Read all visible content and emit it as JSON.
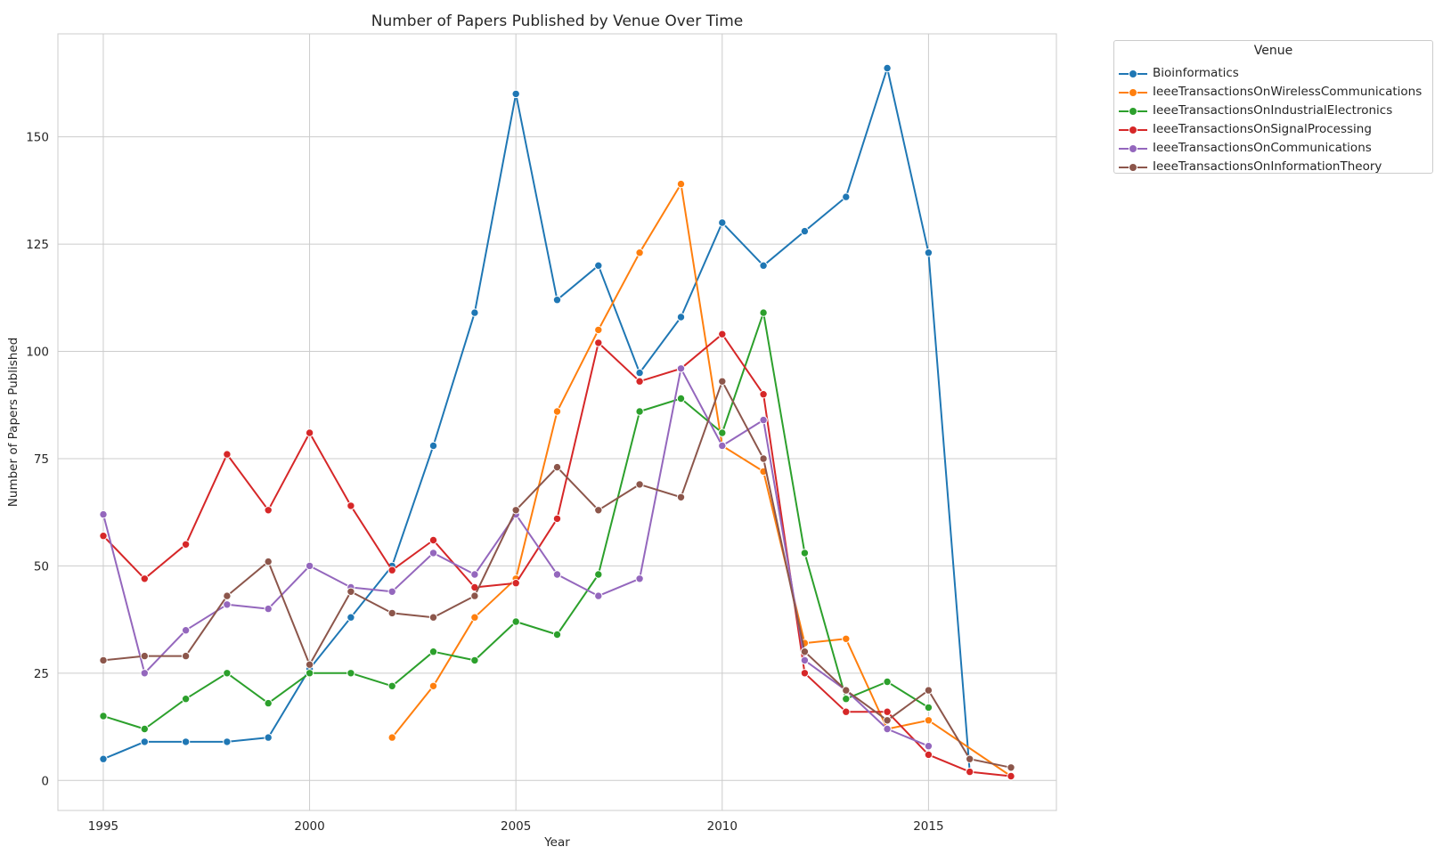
{
  "chart_data": {
    "type": "line",
    "title": "Number of Papers Published by Venue Over Time",
    "xlabel": "Year",
    "ylabel": "Number of Papers Published",
    "xlim": [
      1993.9,
      2018.1
    ],
    "ylim": [
      -7,
      174
    ],
    "xticks": [
      1995,
      2000,
      2005,
      2010,
      2015
    ],
    "yticks": [
      0,
      25,
      50,
      75,
      100,
      125,
      150
    ],
    "grid": true,
    "legend_title": "Venue",
    "legend_position": "outside-top-right",
    "series": [
      {
        "name": "Bioinformatics",
        "color": "#1f77b4",
        "x": [
          1995,
          1996,
          1997,
          1998,
          1999,
          2000,
          2001,
          2002,
          2003,
          2004,
          2005,
          2006,
          2007,
          2008,
          2009,
          2010,
          2011,
          2012,
          2013,
          2014,
          2015,
          2016
        ],
        "values": [
          5,
          9,
          9,
          9,
          10,
          26,
          38,
          50,
          78,
          109,
          160,
          112,
          120,
          95,
          108,
          130,
          120,
          128,
          136,
          166,
          123,
          2
        ]
      },
      {
        "name": "IeeeTransactionsOnWirelessCommunications",
        "color": "#ff7f0e",
        "x": [
          2002,
          2003,
          2004,
          2005,
          2006,
          2007,
          2008,
          2009,
          2010,
          2011,
          2012,
          2013,
          2014,
          2015,
          2017
        ],
        "values": [
          10,
          22,
          38,
          47,
          86,
          105,
          123,
          139,
          78,
          72,
          32,
          33,
          12,
          14,
          1
        ]
      },
      {
        "name": "IeeeTransactionsOnIndustrialElectronics",
        "color": "#2ca02c",
        "x": [
          1995,
          1996,
          1997,
          1998,
          1999,
          2000,
          2001,
          2002,
          2003,
          2004,
          2005,
          2006,
          2007,
          2008,
          2009,
          2010,
          2011,
          2012,
          2013,
          2014,
          2015
        ],
        "values": [
          15,
          12,
          19,
          25,
          18,
          25,
          25,
          22,
          30,
          28,
          37,
          34,
          48,
          86,
          89,
          81,
          109,
          53,
          19,
          23,
          17
        ]
      },
      {
        "name": "IeeeTransactionsOnSignalProcessing",
        "color": "#d62728",
        "x": [
          1995,
          1996,
          1997,
          1998,
          1999,
          2000,
          2001,
          2002,
          2003,
          2004,
          2005,
          2006,
          2007,
          2008,
          2009,
          2010,
          2011,
          2012,
          2013,
          2014,
          2015,
          2016,
          2017
        ],
        "values": [
          57,
          47,
          55,
          76,
          63,
          81,
          64,
          49,
          56,
          45,
          46,
          61,
          102,
          93,
          96,
          104,
          90,
          25,
          16,
          16,
          6,
          2,
          1
        ]
      },
      {
        "name": "IeeeTransactionsOnCommunications",
        "color": "#9467bd",
        "x": [
          1995,
          1996,
          1997,
          1998,
          1999,
          2000,
          2001,
          2002,
          2003,
          2004,
          2005,
          2006,
          2007,
          2008,
          2009,
          2010,
          2011,
          2012,
          2013,
          2014,
          2015
        ],
        "values": [
          62,
          25,
          35,
          41,
          40,
          50,
          45,
          44,
          53,
          48,
          62,
          48,
          43,
          47,
          96,
          78,
          84,
          28,
          21,
          12,
          8
        ]
      },
      {
        "name": "IeeeTransactionsOnInformationTheory",
        "color": "#8c564b",
        "x": [
          1995,
          1996,
          1997,
          1998,
          1999,
          2000,
          2001,
          2002,
          2003,
          2004,
          2005,
          2006,
          2007,
          2008,
          2009,
          2010,
          2011,
          2012,
          2013,
          2014,
          2015,
          2016,
          2017
        ],
        "values": [
          28,
          29,
          29,
          43,
          51,
          27,
          44,
          39,
          38,
          43,
          63,
          73,
          63,
          69,
          66,
          93,
          75,
          30,
          21,
          14,
          21,
          5,
          3
        ]
      }
    ]
  }
}
